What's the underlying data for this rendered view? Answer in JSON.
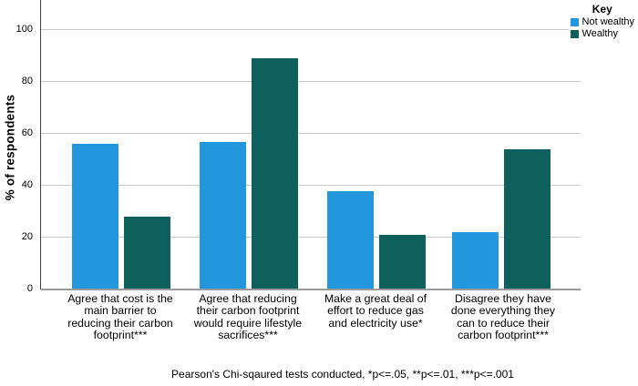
{
  "chart_data": {
    "type": "bar",
    "title": "",
    "xlabel": "",
    "ylabel": "% of respondents",
    "ylim": [
      0,
      110
    ],
    "y_ticks": [
      0,
      20,
      40,
      60,
      80,
      100
    ],
    "grid": true,
    "legend_position": "top-right",
    "legend_title": "Key",
    "categories": [
      "Agree that cost is the\nmain barrier to\nreducing their carbon\nfootprint***",
      "Agree that reducing\ntheir carbon footprint\nwould require lifestyle\nsacrifices***",
      "Make a great deal of\neffort to reduce gas\nand electricity use*",
      "Disagree they have\ndone everything they\ncan to reduce their\ncarbon footprint***"
    ],
    "series": [
      {
        "name": "Not wealthy",
        "color": "#2297DD",
        "values": [
          56,
          57,
          38,
          22
        ]
      },
      {
        "name": "Wealthy",
        "color": "#0D605C",
        "values": [
          28,
          89,
          21,
          54
        ]
      }
    ],
    "footnote": "Pearson's Chi-sqaured tests conducted, *p<=.05, **p<=.01, ***p<=.001"
  }
}
